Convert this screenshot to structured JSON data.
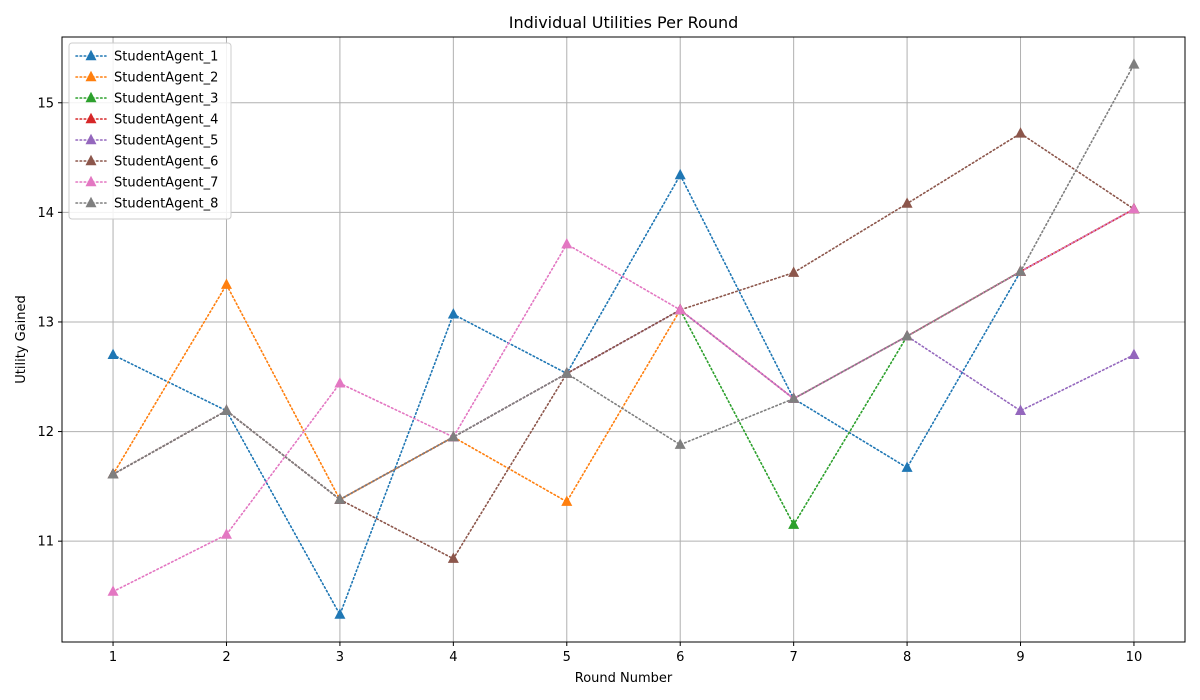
{
  "chart_data": {
    "type": "line",
    "title": "Individual Utilities Per Round",
    "xlabel": "Round Number",
    "ylabel": "Utility Gained",
    "x": [
      1,
      2,
      3,
      4,
      5,
      6,
      7,
      8,
      9,
      10
    ],
    "xlim": [
      0.55,
      10.45
    ],
    "ylim": [
      10.08,
      15.6
    ],
    "yticks": [
      11,
      12,
      13,
      14,
      15
    ],
    "grid": true,
    "legend_position": "upper-left",
    "line_style": "dotted",
    "marker": "triangle-up",
    "series": [
      {
        "name": "StudentAgent_1",
        "color": "#1f77b4",
        "values": [
          12.7,
          12.19,
          10.33,
          13.07,
          12.53,
          14.34,
          12.3,
          11.67,
          13.46,
          14.03
        ]
      },
      {
        "name": "StudentAgent_2",
        "color": "#ff7f0e",
        "values": [
          11.61,
          13.34,
          11.38,
          11.95,
          11.36,
          13.11,
          12.3,
          12.87,
          13.46,
          14.03
        ]
      },
      {
        "name": "StudentAgent_3",
        "color": "#2ca02c",
        "values": [
          11.61,
          12.19,
          11.38,
          11.95,
          12.53,
          13.11,
          11.15,
          12.87,
          13.46,
          14.03
        ]
      },
      {
        "name": "StudentAgent_4",
        "color": "#d62728",
        "values": [
          11.61,
          12.19,
          11.38,
          11.95,
          12.53,
          13.11,
          12.3,
          12.87,
          13.46,
          14.03
        ]
      },
      {
        "name": "StudentAgent_5",
        "color": "#9467bd",
        "values": [
          11.61,
          12.19,
          11.38,
          11.95,
          12.53,
          13.11,
          12.3,
          12.87,
          12.19,
          12.7
        ]
      },
      {
        "name": "StudentAgent_6",
        "color": "#8c564b",
        "values": [
          11.61,
          12.19,
          11.38,
          10.84,
          12.53,
          13.11,
          13.45,
          14.08,
          14.72,
          14.03
        ]
      },
      {
        "name": "StudentAgent_7",
        "color": "#e377c2",
        "values": [
          10.54,
          11.06,
          12.44,
          11.95,
          13.71,
          13.11,
          12.3,
          12.87,
          13.46,
          14.03
        ]
      },
      {
        "name": "StudentAgent_8",
        "color": "#7f7f7f",
        "values": [
          11.61,
          12.19,
          11.38,
          11.95,
          12.53,
          11.88,
          12.3,
          12.87,
          13.46,
          15.35
        ]
      }
    ]
  }
}
